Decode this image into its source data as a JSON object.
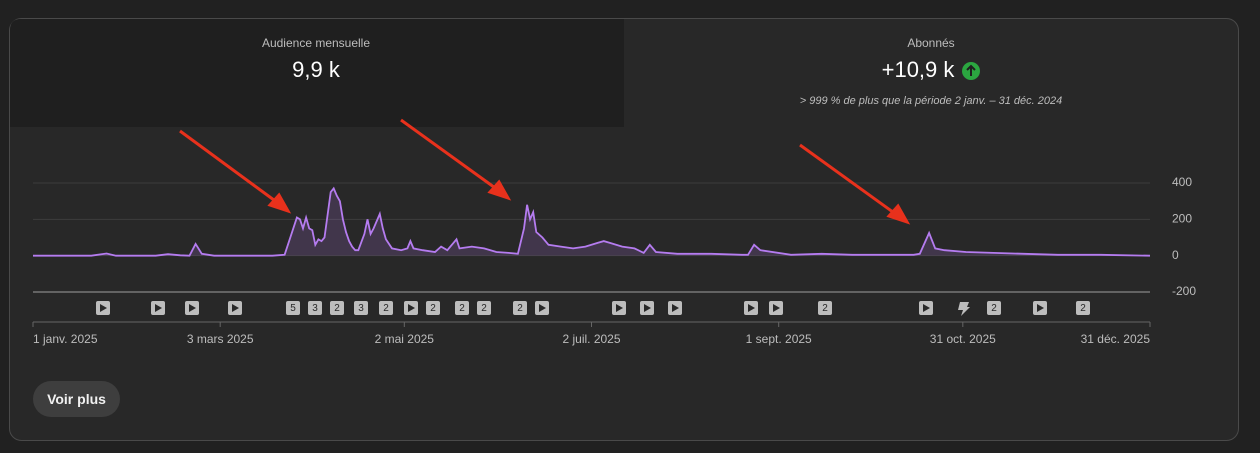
{
  "cards": [
    {
      "label": "Audience mensuelle",
      "value": "9,9 k"
    },
    {
      "label": "Abonnés",
      "value": "+10,9 k",
      "note": "> 999 % de plus que la période 2 janv. – 31 déc. 2024"
    }
  ],
  "chart_data": {
    "type": "line",
    "color": "#b57cf0",
    "grid": true,
    "x": [
      "2025-01-01",
      "2025-01-20",
      "2025-01-25",
      "2025-01-28",
      "2025-02-10",
      "2025-02-14",
      "2025-02-18",
      "2025-02-21",
      "2025-02-23",
      "2025-02-25",
      "2025-03-01",
      "2025-03-10",
      "2025-03-20",
      "2025-03-24",
      "2025-03-28",
      "2025-03-29",
      "2025-03-30",
      "2025-03-31",
      "2025-04-01",
      "2025-04-02",
      "2025-04-03",
      "2025-04-04",
      "2025-04-05",
      "2025-04-06",
      "2025-04-08",
      "2025-04-09",
      "2025-04-10",
      "2025-04-11",
      "2025-04-12",
      "2025-04-13",
      "2025-04-14",
      "2025-04-15",
      "2025-04-16",
      "2025-04-17",
      "2025-04-19",
      "2025-04-20",
      "2025-04-21",
      "2025-04-22",
      "2025-04-24",
      "2025-04-25",
      "2025-04-26",
      "2025-04-28",
      "2025-05-01",
      "2025-05-03",
      "2025-05-04",
      "2025-05-05",
      "2025-05-08",
      "2025-05-12",
      "2025-05-14",
      "2025-05-16",
      "2025-05-19",
      "2025-05-20",
      "2025-05-24",
      "2025-05-28",
      "2025-06-01",
      "2025-06-05",
      "2025-06-08",
      "2025-06-10",
      "2025-06-11",
      "2025-06-12",
      "2025-06-13",
      "2025-06-14",
      "2025-06-16",
      "2025-06-18",
      "2025-06-22",
      "2025-06-26",
      "2025-06-30",
      "2025-07-04",
      "2025-07-06",
      "2025-07-08",
      "2025-07-12",
      "2025-07-16",
      "2025-07-19",
      "2025-07-21",
      "2025-07-23",
      "2025-07-30",
      "2025-08-10",
      "2025-08-20",
      "2025-08-22",
      "2025-08-24",
      "2025-08-26",
      "2025-09-05",
      "2025-09-15",
      "2025-09-25",
      "2025-10-05",
      "2025-10-15",
      "2025-10-17",
      "2025-10-20",
      "2025-10-22",
      "2025-10-25",
      "2025-11-01",
      "2025-11-10",
      "2025-11-20",
      "2025-12-01",
      "2025-12-15",
      "2025-12-31"
    ],
    "values": [
      0,
      0,
      12,
      0,
      0,
      8,
      2,
      0,
      65,
      10,
      0,
      0,
      0,
      5,
      210,
      200,
      150,
      210,
      150,
      140,
      60,
      90,
      80,
      100,
      350,
      370,
      330,
      300,
      200,
      130,
      80,
      50,
      30,
      30,
      120,
      200,
      120,
      150,
      230,
      150,
      90,
      40,
      30,
      40,
      80,
      40,
      30,
      20,
      50,
      30,
      90,
      40,
      50,
      40,
      20,
      15,
      10,
      150,
      280,
      200,
      240,
      130,
      100,
      60,
      50,
      40,
      50,
      70,
      80,
      70,
      50,
      40,
      15,
      60,
      20,
      10,
      10,
      5,
      5,
      60,
      30,
      5,
      10,
      5,
      5,
      5,
      10,
      125,
      40,
      30,
      20,
      15,
      10,
      5,
      5,
      0
    ],
    "xlim": [
      "2025-01-01",
      "2025-12-31"
    ],
    "xticks": [
      {
        "value": "2025-01-01",
        "label": "1 janv. 2025"
      },
      {
        "value": "2025-03-03",
        "label": "3 mars 2025"
      },
      {
        "value": "2025-05-02",
        "label": "2 mai 2025"
      },
      {
        "value": "2025-07-02",
        "label": "2 juil. 2025"
      },
      {
        "value": "2025-09-01",
        "label": "1 sept. 2025"
      },
      {
        "value": "2025-10-31",
        "label": "31 oct. 2025"
      },
      {
        "value": "2025-12-31",
        "label": "31 déc. 2025"
      }
    ],
    "ylim": [
      -200,
      400
    ],
    "yticks": [
      400,
      200,
      0,
      -200
    ]
  },
  "video_badges": [
    "5",
    "3",
    "2",
    "3",
    "2",
    "2",
    "2",
    "2",
    "2",
    "2",
    "2",
    "2"
  ],
  "button": "Voir plus"
}
